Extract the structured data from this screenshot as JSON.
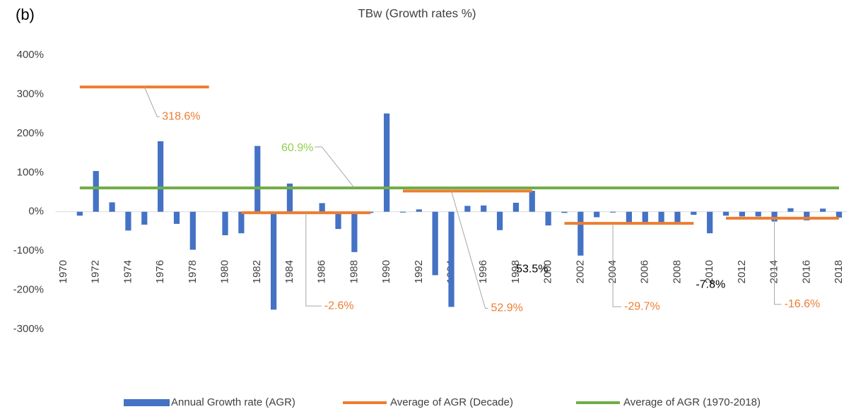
{
  "chart_data": {
    "type": "bar",
    "title": "TBw  (Growth rates %)",
    "panel_label": "(b)",
    "categories": [
      "1970",
      null,
      "1972",
      null,
      "1974",
      null,
      "1976",
      null,
      "1978",
      null,
      "1980",
      null,
      "1982",
      null,
      "1984",
      null,
      "1986",
      null,
      "1988",
      null,
      "1990",
      null,
      "1992",
      null,
      "1994",
      null,
      "1996",
      null,
      "1998",
      null,
      "2000",
      null,
      "2002",
      null,
      "2004",
      null,
      "2006",
      null,
      "2008",
      null,
      "2010",
      null,
      "2012",
      null,
      "2014",
      null,
      "2016",
      null,
      "2018"
    ],
    "series": [
      {
        "name": "Annual Growth rate (AGR)",
        "type": "bar",
        "color": "#4472c4",
        "label_color": "#000000",
        "values": [
          0,
          -10,
          104,
          24,
          -48,
          -33,
          180,
          -31,
          -97,
          0,
          -60,
          -55,
          168,
          -250,
          72,
          -3,
          22,
          -44,
          -103,
          -3,
          251,
          -2,
          6,
          -162,
          -243,
          15,
          16,
          -47,
          23,
          53.5,
          -35,
          -3,
          -112,
          -14,
          -2,
          -33,
          -32,
          -31,
          -31,
          -7.8,
          -55,
          -10,
          -12,
          -12,
          -25,
          9,
          -22,
          8,
          -15
        ],
        "value_labels": [
          null,
          null,
          null,
          null,
          null,
          null,
          null,
          null,
          null,
          null,
          null,
          null,
          null,
          null,
          null,
          null,
          null,
          null,
          null,
          null,
          null,
          null,
          null,
          null,
          null,
          null,
          null,
          null,
          null,
          "53.5%",
          null,
          null,
          null,
          null,
          null,
          null,
          null,
          null,
          null,
          "-7.8%",
          null,
          null,
          null,
          null,
          null,
          null,
          null,
          null,
          null
        ]
      },
      {
        "name": "Average of AGR (Decade)",
        "type": "line",
        "color": "#ed7d31",
        "label_color": "#ed7d31",
        "values": [
          null,
          318.6,
          318.6,
          318.6,
          318.6,
          318.6,
          318.6,
          318.6,
          318.6,
          318.6,
          null,
          -2.6,
          -2.6,
          -2.6,
          -2.6,
          -2.6,
          -2.6,
          -2.6,
          -2.6,
          -2.6,
          null,
          52.9,
          52.9,
          52.9,
          52.9,
          52.9,
          52.9,
          52.9,
          52.9,
          52.9,
          null,
          -29.7,
          -29.7,
          -29.7,
          -29.7,
          -29.7,
          -29.7,
          -29.7,
          -29.7,
          -29.7,
          null,
          -16.6,
          -16.6,
          -16.6,
          -16.6,
          -16.6,
          -16.6,
          -16.6,
          -16.6
        ],
        "value_labels": [
          null,
          null,
          null,
          null,
          null,
          "318.6%",
          null,
          null,
          null,
          null,
          null,
          null,
          null,
          null,
          null,
          "-2.6%",
          null,
          null,
          null,
          null,
          null,
          null,
          null,
          null,
          "52.9%",
          null,
          null,
          null,
          null,
          null,
          null,
          null,
          null,
          null,
          "-29.7%",
          null,
          null,
          null,
          null,
          null,
          null,
          null,
          null,
          null,
          "-16.6%",
          null,
          null,
          null,
          null
        ]
      },
      {
        "name": "Average of AGR (1970-2018)",
        "type": "line",
        "color": "#70ad47",
        "label_color": "#92d050",
        "values": [
          null,
          60.9,
          60.9,
          60.9,
          60.9,
          60.9,
          60.9,
          60.9,
          60.9,
          60.9,
          60.9,
          60.9,
          60.9,
          60.9,
          60.9,
          60.9,
          60.9,
          60.9,
          60.9,
          60.9,
          60.9,
          60.9,
          60.9,
          60.9,
          60.9,
          60.9,
          60.9,
          60.9,
          60.9,
          60.9,
          60.9,
          60.9,
          60.9,
          60.9,
          60.9,
          60.9,
          60.9,
          60.9,
          60.9,
          60.9,
          60.9,
          60.9,
          60.9,
          60.9,
          60.9,
          60.9,
          60.9,
          60.9,
          60.9
        ],
        "value_labels": [
          null,
          null,
          null,
          null,
          null,
          null,
          null,
          null,
          null,
          null,
          null,
          null,
          null,
          null,
          null,
          null,
          null,
          null,
          "60.9%",
          null,
          null,
          null,
          null,
          null,
          null,
          null,
          null,
          null,
          null,
          null,
          null,
          null,
          null,
          null,
          null,
          null,
          null,
          null,
          null,
          null,
          null,
          null,
          null,
          null,
          null,
          null,
          null,
          null,
          null
        ]
      }
    ],
    "ylim": [
      -300,
      400
    ],
    "yticks": [
      {
        "value": -300,
        "label": "-300%"
      },
      {
        "value": -200,
        "label": "-200%"
      },
      {
        "value": -100,
        "label": "-100%"
      },
      {
        "value": 0,
        "label": "0%"
      },
      {
        "value": 100,
        "label": "100%"
      },
      {
        "value": 200,
        "label": "200%"
      },
      {
        "value": 300,
        "label": "300%"
      },
      {
        "value": 400,
        "label": "400%"
      }
    ],
    "grid": false,
    "legend": "bottom"
  }
}
